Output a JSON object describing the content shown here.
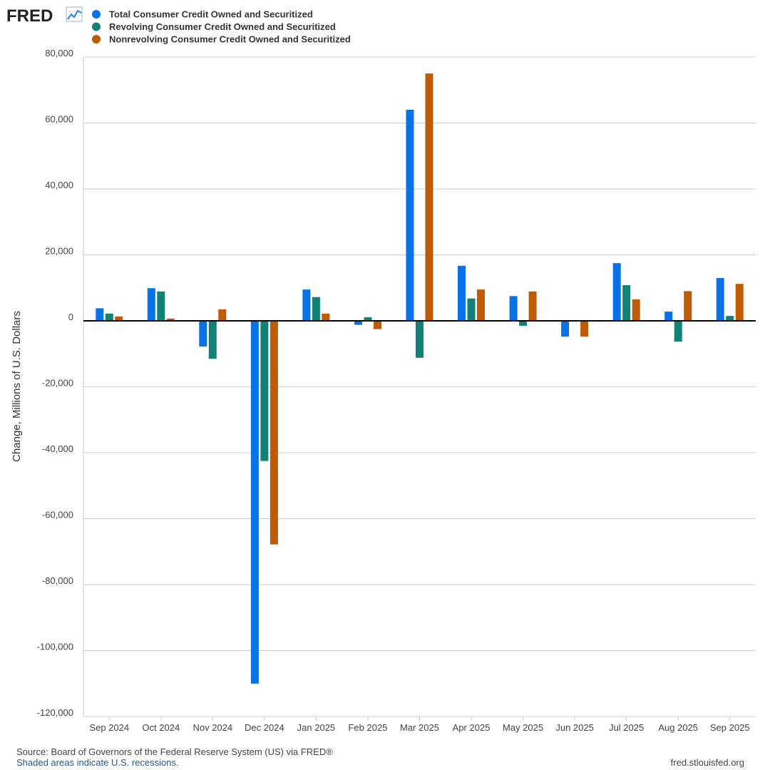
{
  "header": {
    "logo_text": "FRED",
    "logo_icon": "line-chart-icon"
  },
  "chart_data": {
    "type": "bar",
    "title": "",
    "xlabel": "",
    "ylabel": "Change, Millions of U.S. Dollars",
    "ylim": [
      -120000,
      80000
    ],
    "yticks": [
      80000,
      60000,
      40000,
      20000,
      0,
      -20000,
      -40000,
      -60000,
      -80000,
      -100000,
      -120000
    ],
    "ytick_labels": [
      "80,000",
      "60,000",
      "40,000",
      "20,000",
      "0",
      "-20,000",
      "-40,000",
      "-60,000",
      "-80,000",
      "-100,000",
      "-120,000"
    ],
    "grid": true,
    "legend_position": "top-left",
    "categories": [
      "Sep 2024",
      "Oct 2024",
      "Nov 2024",
      "Dec 2024",
      "Jan 2025",
      "Feb 2025",
      "Mar 2025",
      "Apr 2025",
      "May 2025",
      "Jun 2025",
      "Jul 2025",
      "Aug 2025",
      "Sep 2025"
    ],
    "series": [
      {
        "name": "Total Consumer Credit Owned and Securitized",
        "color": "#0773e6",
        "values": [
          3800,
          9900,
          -7800,
          -110000,
          9500,
          -1200,
          64000,
          16700,
          7500,
          -4800,
          17500,
          2800,
          13000
        ]
      },
      {
        "name": "Revolving Consumer Credit Owned and Securitized",
        "color": "#128279",
        "values": [
          2200,
          8900,
          -11500,
          -42500,
          7200,
          1100,
          -11200,
          6800,
          -1500,
          -100,
          10800,
          -6300,
          1500
        ]
      },
      {
        "name": "Nonrevolving Consumer Credit Owned and Securitized",
        "color": "#bf5b04",
        "values": [
          1300,
          700,
          3500,
          -67800,
          2200,
          -2500,
          75000,
          9500,
          8900,
          -4800,
          6500,
          9000,
          11200
        ]
      }
    ]
  },
  "footer": {
    "source": "Source: Board of Governors of the Federal Reserve System (US) via FRED®",
    "note": "Shaded areas indicate U.S. recessions.",
    "url": "fred.stlouisfed.org"
  }
}
